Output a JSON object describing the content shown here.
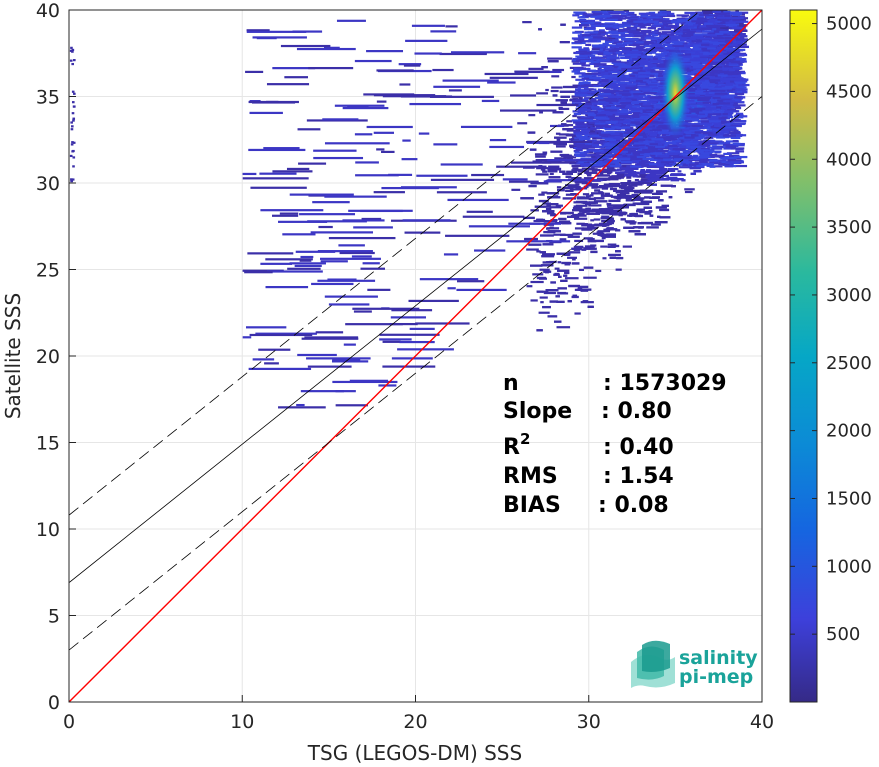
{
  "chart_data": {
    "type": "heatmap",
    "title": "",
    "xlabel": "TSG (LEGOS-DM) SSS",
    "ylabel": "Satellite SSS",
    "xlim": [
      0,
      40
    ],
    "ylim": [
      0,
      40
    ],
    "x_ticks": [
      "0",
      "10",
      "20",
      "30",
      "40"
    ],
    "y_ticks": [
      "0",
      "5",
      "10",
      "15",
      "20",
      "25",
      "30",
      "35",
      "40"
    ],
    "grid": true,
    "colormap": "parula",
    "colorbar": {
      "range": [
        0,
        5100
      ],
      "ticks": [
        "500",
        "1000",
        "1500",
        "2000",
        "2500",
        "3000",
        "3500",
        "4000",
        "4500",
        "5000"
      ]
    },
    "density_peak": {
      "x": 35,
      "y": 35.2,
      "max_count": 5100
    },
    "lines": [
      {
        "role": "identity",
        "color": "#ff0000",
        "style": "solid",
        "intercept": 0,
        "slope": 1
      },
      {
        "role": "regression",
        "color": "#000000",
        "style": "solid",
        "intercept": 6.9,
        "slope": 0.8
      },
      {
        "role": "regression-upper",
        "color": "#000000",
        "style": "dashed",
        "intercept": 10.8,
        "slope": 0.8
      },
      {
        "role": "regression-lower",
        "color": "#000000",
        "style": "dashed",
        "intercept": 3.0,
        "slope": 0.8
      }
    ],
    "stats": [
      {
        "label": "n",
        "value": ": 1573029"
      },
      {
        "label": "Slope",
        "value": ": 0.80"
      },
      {
        "label": "R",
        "sup": "2",
        "value": ": 0.40"
      },
      {
        "label": "RMS",
        "value": ": 1.54"
      },
      {
        "label": "BIAS",
        "value": ": 0.08"
      }
    ]
  },
  "logo": {
    "line1": "salinity",
    "line2": "pi-mep"
  }
}
